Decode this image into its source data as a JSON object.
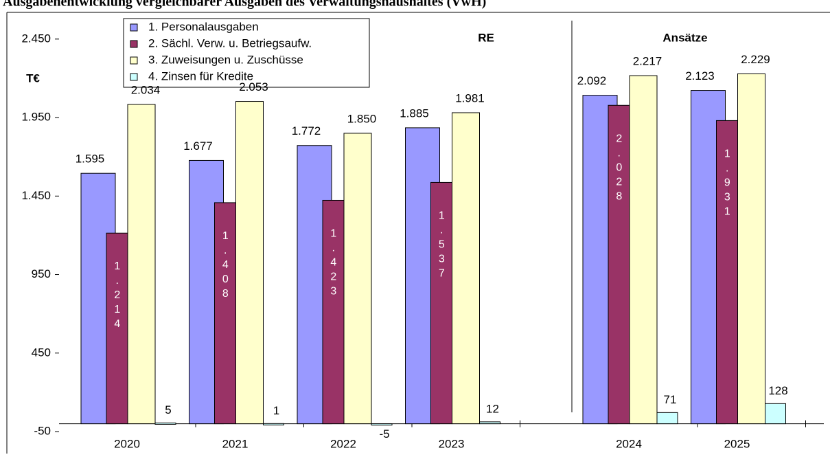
{
  "chart_data": {
    "type": "bar",
    "title": "Ausgabenentwicklung vergleichbarer Ausgaben des Verwaltungshaushaltes (VwH)",
    "y_axis_label": "T€",
    "annotations": [
      "RE",
      "Ansätze"
    ],
    "categories": [
      "2020",
      "2021",
      "2022",
      "2023",
      "2024",
      "2025"
    ],
    "series": [
      {
        "name": "1. Personalausgaben",
        "color": "#9999ff",
        "values": [
          1595,
          1677,
          1772,
          1885,
          2092,
          2123
        ],
        "value_labels": [
          "1.595",
          "1.677",
          "1.772",
          "1.885",
          "2.092",
          "2.123"
        ]
      },
      {
        "name": "2. Sächl. Verw. u. Betriegsaufw.",
        "color": "#993366",
        "values": [
          1214,
          1408,
          1423,
          1537,
          2028,
          1931
        ],
        "value_labels": [
          "1.214",
          "1.408",
          "1.423",
          "1.537",
          "2.028",
          "1.931"
        ]
      },
      {
        "name": "3. Zuweisungen u. Zuschüsse",
        "color": "#ffffcc",
        "values": [
          2034,
          2053,
          1850,
          1981,
          2217,
          2229
        ],
        "value_labels": [
          "2.034",
          "2.053",
          "1.850",
          "1.981",
          "2.217",
          "2.229"
        ]
      },
      {
        "name": "4. Zinsen für Kredite",
        "color": "#ccffff",
        "values": [
          5,
          1,
          -5,
          12,
          71,
          128
        ]
      }
    ],
    "ylim": [
      -50,
      2620
    ],
    "yticks": [
      -50,
      450,
      950,
      {
        "value": 1450,
        "label": "1.450"
      },
      {
        "value": 1950,
        "label": "1.950"
      },
      {
        "value": 2450,
        "label": "2.450"
      }
    ],
    "grid": false,
    "legend": "top-left"
  }
}
